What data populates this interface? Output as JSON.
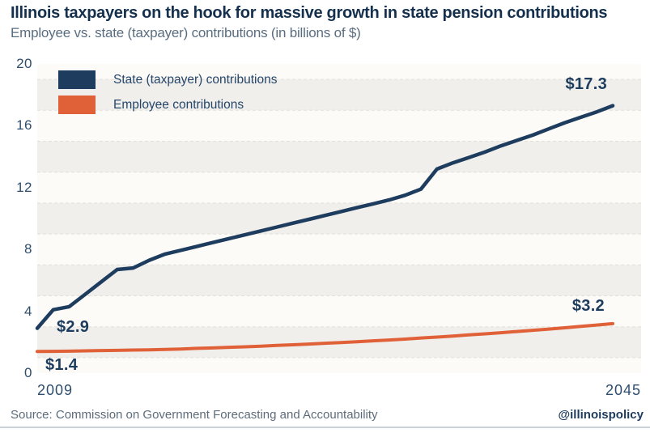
{
  "chart_data": {
    "type": "line",
    "title": "Illinois taxpayers on the hook for massive growth in state pension contributions",
    "subtitle": "Employee vs. state (taxpayer) contributions (in billions of $)",
    "x": [
      2009,
      2010,
      2011,
      2012,
      2013,
      2014,
      2015,
      2016,
      2017,
      2018,
      2019,
      2020,
      2021,
      2022,
      2023,
      2024,
      2025,
      2026,
      2027,
      2028,
      2029,
      2030,
      2031,
      2032,
      2033,
      2034,
      2035,
      2036,
      2037,
      2038,
      2039,
      2040,
      2041,
      2042,
      2043,
      2044,
      2045
    ],
    "series": [
      {
        "name": "State (taxpayer) contributions",
        "color": "#1d3c5e",
        "values": [
          2.9,
          4.1,
          4.3,
          5.1,
          5.9,
          6.7,
          6.8,
          7.3,
          7.7,
          7.95,
          8.2,
          8.45,
          8.7,
          8.95,
          9.2,
          9.45,
          9.7,
          9.95,
          10.2,
          10.45,
          10.7,
          10.95,
          11.2,
          11.5,
          11.9,
          13.2,
          13.6,
          13.95,
          14.3,
          14.7,
          15.05,
          15.4,
          15.8,
          16.2,
          16.55,
          16.9,
          17.3
        ]
      },
      {
        "name": "Employee contributions",
        "color": "#e06038",
        "values": [
          1.4,
          1.41,
          1.42,
          1.44,
          1.46,
          1.47,
          1.49,
          1.51,
          1.53,
          1.56,
          1.6,
          1.63,
          1.67,
          1.7,
          1.74,
          1.79,
          1.83,
          1.88,
          1.93,
          1.98,
          2.03,
          2.09,
          2.14,
          2.2,
          2.27,
          2.33,
          2.4,
          2.47,
          2.54,
          2.61,
          2.69,
          2.77,
          2.85,
          2.93,
          3.02,
          3.11,
          3.2
        ]
      }
    ],
    "ylim": [
      0,
      20
    ],
    "xlabel": "",
    "ylabel": "",
    "y_ticks": [
      "20",
      "16",
      "12",
      "8",
      "4",
      "0"
    ],
    "x_tick_labels": [
      "2009",
      "2045"
    ],
    "grid": "horizontal dashed lines every 2 units with alternating shaded bands",
    "legend_position": "top-left inside plot",
    "annotations": {
      "state_first": {
        "text": "$2.9"
      },
      "state_last": {
        "text": "$17.3"
      },
      "employee_first": {
        "text": "$1.4"
      },
      "employee_last": {
        "text": "$3.2"
      }
    },
    "plot_colors": {
      "band_light": "#fcfbf8",
      "band_dark": "#f0efec",
      "grid": "#e3e0d9"
    }
  },
  "footer": {
    "source": "Source: Commission on Government Forecasting and Accountability",
    "handle": "@illinoispolicy"
  }
}
